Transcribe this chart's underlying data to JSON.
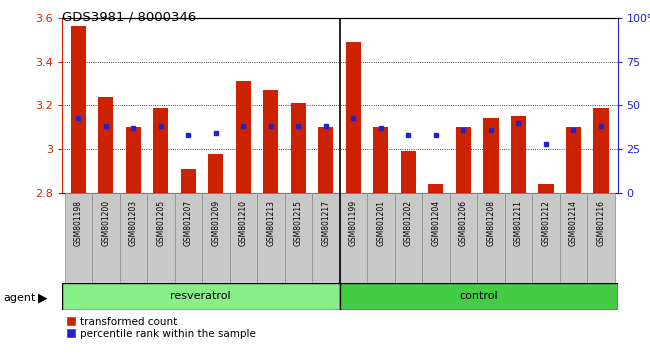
{
  "title": "GDS3981 / 8000346",
  "samples": [
    "GSM801198",
    "GSM801200",
    "GSM801203",
    "GSM801205",
    "GSM801207",
    "GSM801209",
    "GSM801210",
    "GSM801213",
    "GSM801215",
    "GSM801217",
    "GSM801199",
    "GSM801201",
    "GSM801202",
    "GSM801204",
    "GSM801206",
    "GSM801208",
    "GSM801211",
    "GSM801212",
    "GSM801214",
    "GSM801216"
  ],
  "red_values": [
    3.56,
    3.24,
    3.1,
    3.19,
    2.91,
    2.98,
    3.31,
    3.27,
    3.21,
    3.1,
    3.49,
    3.1,
    2.99,
    2.84,
    3.1,
    3.14,
    3.15,
    2.84,
    3.1,
    3.19
  ],
  "blue_pct": [
    43,
    38,
    37,
    38,
    33,
    34,
    38,
    38,
    38,
    38,
    43,
    37,
    33,
    33,
    36,
    36,
    40,
    28,
    36,
    38
  ],
  "ymin": 2.8,
  "ymax": 3.6,
  "yticks": [
    2.8,
    3.0,
    3.2,
    3.4,
    3.6
  ],
  "ytick_labels": [
    "2.8",
    "3",
    "3.2",
    "3.4",
    "3.6"
  ],
  "right_yticks": [
    0,
    25,
    50,
    75,
    100
  ],
  "right_ytick_labels": [
    "0",
    "25",
    "50",
    "75",
    "100%"
  ],
  "grid_lines": [
    3.0,
    3.2,
    3.4
  ],
  "resveratrol_count": 10,
  "control_count": 10,
  "bar_color": "#cc2200",
  "blue_color": "#2222cc",
  "resveratrol_color": "#88ee88",
  "control_color": "#44cc44",
  "tick_box_color": "#c8c8c8",
  "tick_box_edge": "#888888",
  "legend_red": "transformed count",
  "legend_blue": "percentile rank within the sample",
  "group_label": "agent",
  "group1_label": "resveratrol",
  "group2_label": "control",
  "bar_width": 0.55
}
